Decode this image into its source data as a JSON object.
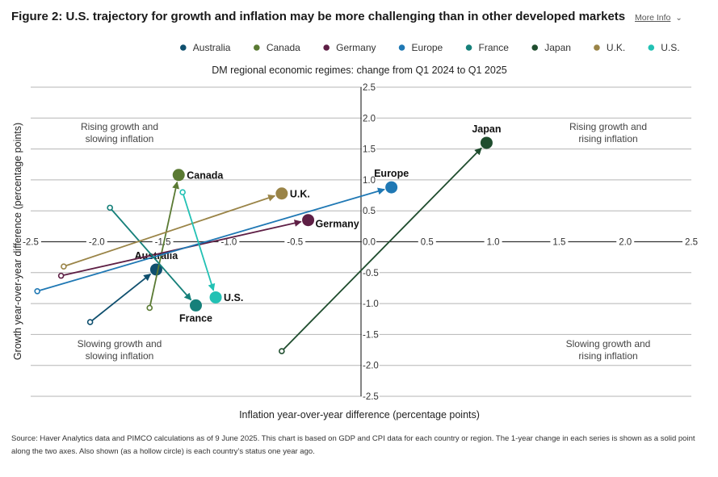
{
  "header": {
    "title": "Figure 2: U.S. trajectory for growth and inflation may be more challenging than in other developed markets",
    "more_info_label": "More Info",
    "chevron_icon": "chevron-down-icon"
  },
  "chart_data": {
    "type": "scatter",
    "title": "DM regional economic regimes: change from Q1 2024 to Q1 2025",
    "xlabel": "Inflation year-over-year difference (percentage points)",
    "ylabel": "Growth year-over-year difference (percentage points)",
    "xlim": [
      -2.5,
      2.5
    ],
    "ylim": [
      -2.5,
      2.5
    ],
    "xticks": [
      -2.5,
      -2.0,
      -1.5,
      -1.0,
      -0.5,
      0.0,
      0.5,
      1.0,
      1.5,
      2.0,
      2.5
    ],
    "yticks": [
      2.5,
      2.0,
      1.5,
      1.0,
      0.5,
      0.0,
      -0.5,
      -1.0,
      -1.5,
      -2.0,
      -2.5
    ],
    "grid": true,
    "legend_position": "top-right",
    "quadrants": [
      {
        "lines": [
          "Rising growth and",
          "slowing inflation"
        ],
        "position": "top-left"
      },
      {
        "lines": [
          "Rising growth and",
          "rising inflation"
        ],
        "position": "top-right"
      },
      {
        "lines": [
          "Slowing growth and",
          "slowing inflation"
        ],
        "position": "bottom-left"
      },
      {
        "lines": [
          "Slowing growth and",
          "rising inflation"
        ],
        "position": "bottom-right"
      }
    ],
    "series": [
      {
        "name": "Australia",
        "color": "#0f4f6e",
        "from": [
          -2.05,
          -1.3
        ],
        "to": [
          -1.55,
          -0.45
        ],
        "label": "Australia",
        "label_pos": "above"
      },
      {
        "name": "Canada",
        "color": "#5a7a33",
        "from": [
          -1.6,
          -1.07
        ],
        "to": [
          -1.38,
          1.08
        ],
        "label": "Canada",
        "label_pos": "right"
      },
      {
        "name": "Germany",
        "color": "#5e1f45",
        "from": [
          -2.27,
          -0.55
        ],
        "to": [
          -0.4,
          0.35
        ],
        "label": "Germany",
        "label_pos": "right-below"
      },
      {
        "name": "Europe",
        "color": "#1f78b4",
        "from": [
          -2.45,
          -0.8
        ],
        "to": [
          0.23,
          0.88
        ],
        "label": "Europe",
        "label_pos": "above"
      },
      {
        "name": "France",
        "color": "#16807a",
        "from": [
          -1.9,
          0.55
        ],
        "to": [
          -1.25,
          -1.03
        ],
        "label": "France",
        "label_pos": "below"
      },
      {
        "name": "Japan",
        "color": "#1f4d2e",
        "from": [
          -0.6,
          -1.77
        ],
        "to": [
          0.95,
          1.6
        ],
        "label": "Japan",
        "label_pos": "above"
      },
      {
        "name": "U.K.",
        "color": "#9a8447",
        "from": [
          -2.25,
          -0.4
        ],
        "to": [
          -0.6,
          0.78
        ],
        "label": "U.K.",
        "label_pos": "right"
      },
      {
        "name": "U.S.",
        "color": "#22c1b4",
        "from": [
          -1.35,
          0.8
        ],
        "to": [
          -1.1,
          -0.9
        ],
        "label": "U.S.",
        "label_pos": "right"
      }
    ]
  },
  "source_note": "Source: Haver Analytics data and PIMCO calculations as of 9 June 2025. This chart is based on GDP and CPI data for each country or region. The 1-year change in each series is shown as a solid point along the two axes. Also shown (as a hollow circle) is each country’s status one year ago."
}
